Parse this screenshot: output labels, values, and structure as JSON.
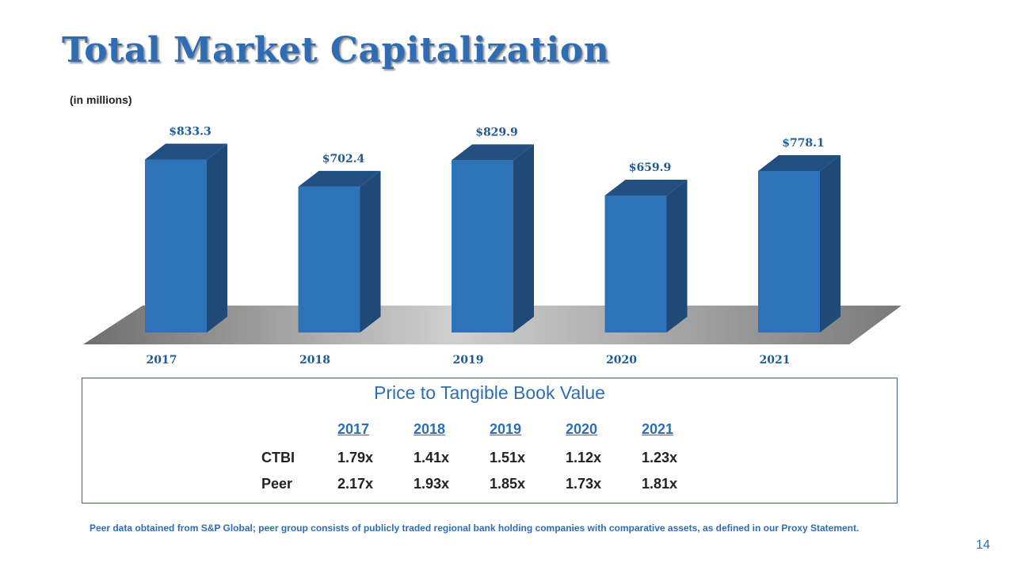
{
  "slide": {
    "title": "Total Market Capitalization",
    "subtitle": "(in millions)",
    "page_number": "14",
    "footnote": "Peer data obtained from S&P Global; peer group consists of publicly traded regional bank holding companies with comparative assets, as defined in our Proxy Statement."
  },
  "chart_data": {
    "type": "bar",
    "categories": [
      "2017",
      "2018",
      "2019",
      "2020",
      "2021"
    ],
    "values": [
      833.3,
      702.4,
      829.9,
      659.9,
      778.1
    ],
    "value_labels": [
      "$833.3",
      "$702.4",
      "$829.9",
      "$659.9",
      "$778.1"
    ],
    "colors": {
      "front": "#2e73b8",
      "side": "#1f4a78",
      "top": "#234f80",
      "label": "#1f5a94"
    },
    "grid": false
  },
  "ptbv": {
    "title": "Price to Tangible Book Value",
    "headers": [
      "2017",
      "2018",
      "2019",
      "2020",
      "2021"
    ],
    "rows": [
      {
        "label": "CTBI",
        "values": [
          "1.79x",
          "1.41x",
          "1.51x",
          "1.12x",
          "1.23x"
        ]
      },
      {
        "label": "Peer",
        "values": [
          "2.17x",
          "1.93x",
          "1.85x",
          "1.73x",
          "1.81x"
        ]
      }
    ]
  }
}
